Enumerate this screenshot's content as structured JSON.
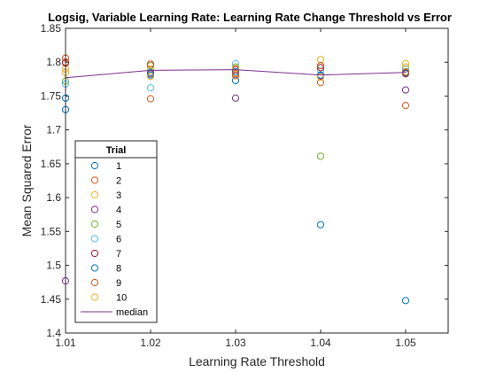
{
  "chart_data": {
    "type": "scatter",
    "title": "Logsig, Variable Learning Rate: Learning Rate Change Threshold vs Error",
    "xlabel": "Learning Rate Threshold",
    "ylabel": "Mean Squared Error",
    "xlim": [
      1.01,
      1.055
    ],
    "ylim": [
      1.4,
      1.85
    ],
    "xticks": [
      "1.01",
      "1.02",
      "1.03",
      "1.04",
      "1.05"
    ],
    "yticks": [
      "1.4",
      "1.45",
      "1.5",
      "1.55",
      "1.6",
      "1.65",
      "1.7",
      "1.75",
      "1.8",
      "1.85"
    ],
    "x": [
      1.01,
      1.02,
      1.03,
      1.04,
      1.05
    ],
    "legend_title": "Trial",
    "legend_position": "southwest",
    "series": [
      {
        "name": "1",
        "color": "#0072BD",
        "values": [
          1.73,
          1.785,
          1.773,
          1.56,
          1.448
        ]
      },
      {
        "name": "2",
        "color": "#D95319",
        "values": [
          1.8,
          1.746,
          1.78,
          1.77,
          1.736
        ]
      },
      {
        "name": "3",
        "color": "#EDB120",
        "values": [
          1.79,
          1.79,
          1.784,
          1.804,
          1.793
        ]
      },
      {
        "name": "4",
        "color": "#7E2F8E",
        "values": [
          1.477,
          1.783,
          1.747,
          1.78,
          1.759
        ]
      },
      {
        "name": "5",
        "color": "#77AC30",
        "values": [
          1.772,
          1.795,
          1.793,
          1.661,
          1.786
        ]
      },
      {
        "name": "6",
        "color": "#4DBEEE",
        "values": [
          1.768,
          1.762,
          1.798,
          1.788,
          1.79
        ]
      },
      {
        "name": "7",
        "color": "#A2142F",
        "values": [
          1.799,
          1.797,
          1.789,
          1.792,
          1.783
        ]
      },
      {
        "name": "8",
        "color": "#0072BD",
        "values": [
          1.747,
          1.781,
          1.786,
          1.781,
          1.784
        ]
      },
      {
        "name": "9",
        "color": "#D95319",
        "values": [
          1.806,
          1.797,
          1.783,
          1.795,
          1.785
        ]
      },
      {
        "name": "10",
        "color": "#EDB120",
        "values": [
          1.785,
          1.779,
          1.791,
          1.778,
          1.798
        ]
      }
    ],
    "median": {
      "name": "median",
      "color": "#7E2F8E",
      "values": [
        1.777,
        1.788,
        1.789,
        1.781,
        1.785
      ]
    }
  }
}
